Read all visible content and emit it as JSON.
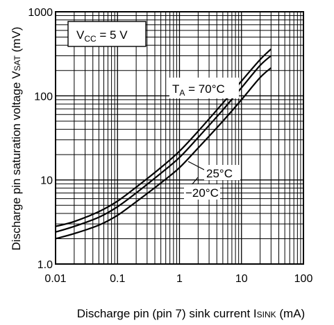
{
  "chart_data": {
    "type": "line",
    "xlabel": "Discharge pin (pin 7) sink current I",
    "xlabel_sub": "SINK",
    "xlabel_unit": " (mA)",
    "ylabel": "Discharge pin saturation voltage V",
    "ylabel_sub": "SAT",
    "ylabel_unit": " (mV)",
    "x_scale": "log",
    "y_scale": "log",
    "xlim": [
      0.01,
      100
    ],
    "ylim": [
      1,
      1000
    ],
    "x_ticks": [
      "0.01",
      "0.1",
      "1",
      "10",
      "100"
    ],
    "y_ticks": [
      "1.0",
      "10",
      "100",
      "1000"
    ],
    "grid": true,
    "condition": {
      "prefix": "V",
      "sub": "CC",
      "text": " = 5 V"
    },
    "series": [
      {
        "name_prefix": "T",
        "name_sub": "A",
        "name": " = 70°C",
        "x": [
          0.01,
          0.02,
          0.05,
          0.1,
          0.2,
          0.5,
          1,
          2,
          5,
          10,
          20,
          30
        ],
        "y": [
          2.8,
          3.2,
          4.2,
          5.6,
          8.2,
          14,
          22,
          38,
          82,
          150,
          270,
          360
        ]
      },
      {
        "name": "25°C",
        "x": [
          0.01,
          0.02,
          0.05,
          0.1,
          0.2,
          0.5,
          1,
          2,
          5,
          10,
          20,
          30
        ],
        "y": [
          2.4,
          2.8,
          3.6,
          4.8,
          7,
          12,
          18.5,
          32,
          68,
          125,
          230,
          300
        ]
      },
      {
        "name": "−20°C",
        "x": [
          0.01,
          0.02,
          0.05,
          0.1,
          0.2,
          0.5,
          1,
          2,
          5,
          10,
          20,
          30
        ],
        "y": [
          2.0,
          2.3,
          2.9,
          3.8,
          5.5,
          9.2,
          14,
          24,
          50,
          90,
          165,
          215
        ]
      }
    ]
  }
}
